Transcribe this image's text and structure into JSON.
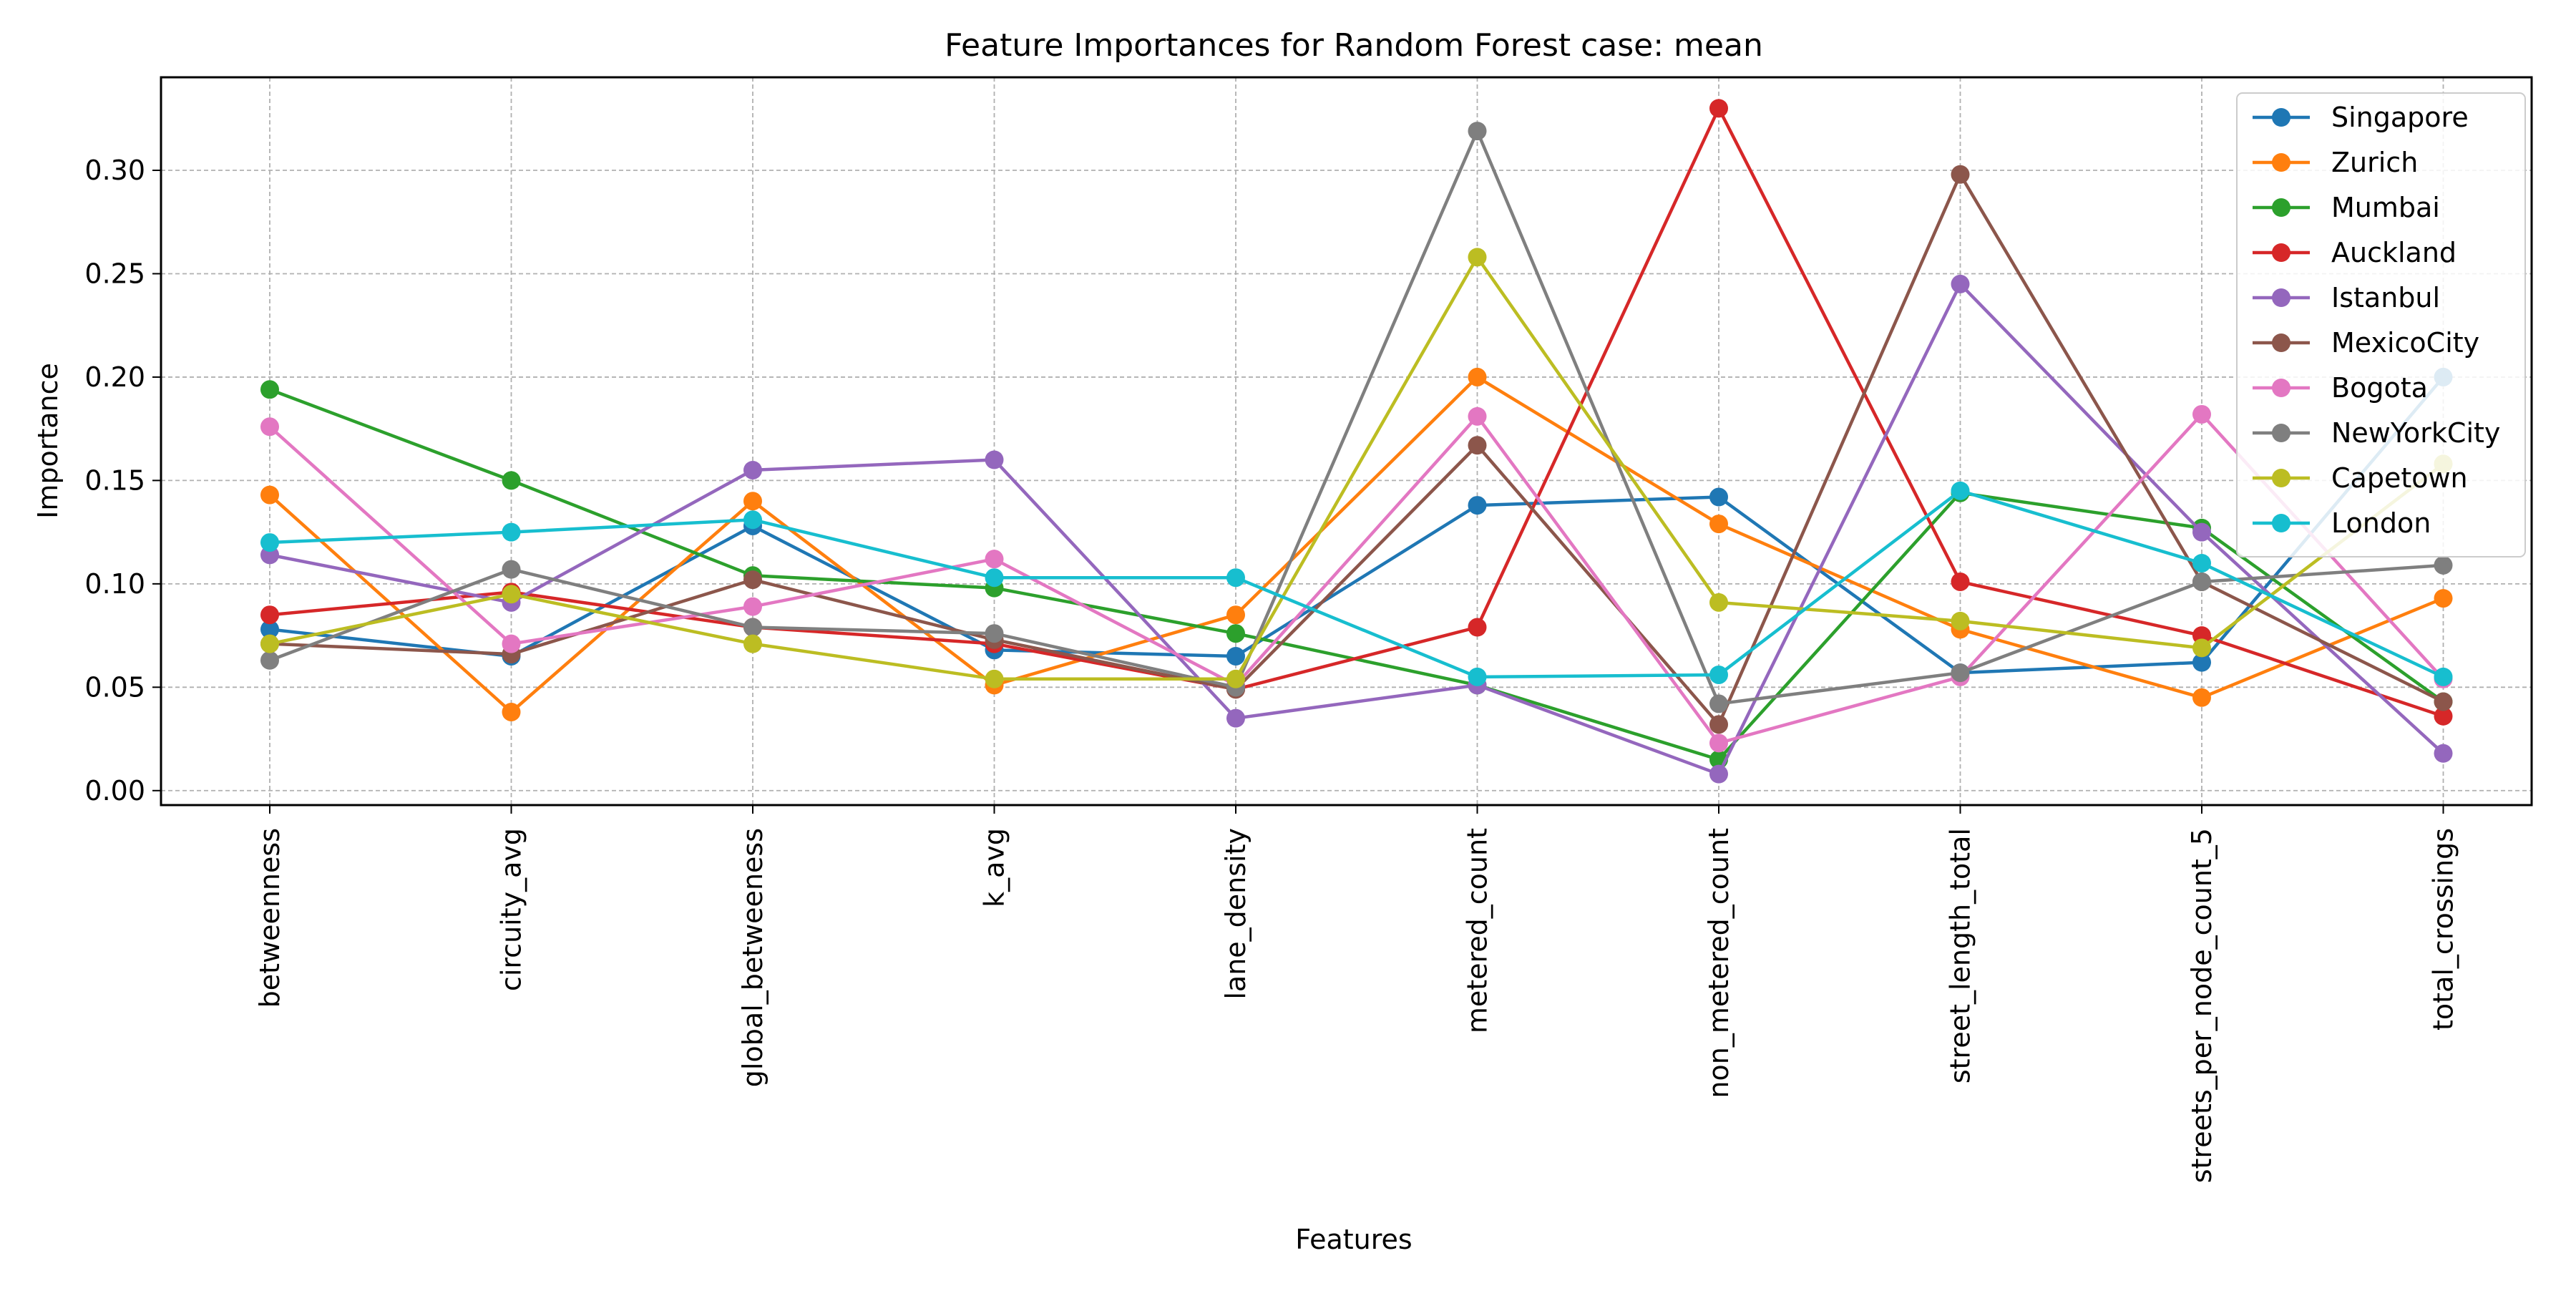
{
  "chart_data": {
    "type": "line",
    "title": "Feature Importances for Random Forest case: mean",
    "xlabel": "Features",
    "ylabel": "Importance",
    "ylim": [
      -0.007,
      0.345
    ],
    "yticks": [
      0.0,
      0.05,
      0.1,
      0.15,
      0.2,
      0.25,
      0.3
    ],
    "ytick_labels": [
      "0.00",
      "0.05",
      "0.10",
      "0.15",
      "0.20",
      "0.25",
      "0.30"
    ],
    "grid": true,
    "legend_position": "top-right",
    "categories": [
      "betweenness",
      "circuity_avg",
      "global_betweeness",
      "k_avg",
      "lane_density",
      "metered_count",
      "non_metered_count",
      "street_length_total",
      "streets_per_node_count_5",
      "total_crossings"
    ],
    "series": [
      {
        "name": "Singapore",
        "color": "#1f77b4",
        "values": [
          0.078,
          0.065,
          0.128,
          0.068,
          0.065,
          0.138,
          0.142,
          0.057,
          0.062,
          0.2
        ]
      },
      {
        "name": "Zurich",
        "color": "#ff7f0e",
        "values": [
          0.143,
          0.038,
          0.14,
          0.051,
          0.085,
          0.2,
          0.129,
          0.078,
          0.045,
          0.093
        ]
      },
      {
        "name": "Mumbai",
        "color": "#2ca02c",
        "values": [
          0.194,
          0.15,
          0.104,
          0.098,
          0.076,
          0.051,
          0.015,
          0.144,
          0.127,
          0.043
        ]
      },
      {
        "name": "Auckland",
        "color": "#d62728",
        "values": [
          0.085,
          0.096,
          0.079,
          0.071,
          0.049,
          0.079,
          0.33,
          0.101,
          0.075,
          0.036
        ]
      },
      {
        "name": "Istanbul",
        "color": "#9467bd",
        "values": [
          0.114,
          0.091,
          0.155,
          0.16,
          0.035,
          0.051,
          0.008,
          0.245,
          0.125,
          0.018
        ]
      },
      {
        "name": "MexicoCity",
        "color": "#8c564b",
        "values": [
          0.071,
          0.066,
          0.102,
          0.073,
          0.049,
          0.167,
          0.032,
          0.298,
          0.101,
          0.043
        ]
      },
      {
        "name": "Bogota",
        "color": "#e377c2",
        "values": [
          0.176,
          0.071,
          0.089,
          0.112,
          0.051,
          0.181,
          0.023,
          0.055,
          0.182,
          0.054
        ]
      },
      {
        "name": "NewYorkCity",
        "color": "#7f7f7f",
        "values": [
          0.063,
          0.107,
          0.079,
          0.076,
          0.05,
          0.319,
          0.042,
          0.057,
          0.101,
          0.109
        ]
      },
      {
        "name": "Capetown",
        "color": "#bcbd22",
        "values": [
          0.071,
          0.095,
          0.071,
          0.054,
          0.054,
          0.258,
          0.091,
          0.082,
          0.069,
          0.158
        ]
      },
      {
        "name": "London",
        "color": "#17becf",
        "values": [
          0.12,
          0.125,
          0.131,
          0.103,
          0.103,
          0.055,
          0.056,
          0.145,
          0.11,
          0.055
        ]
      }
    ]
  }
}
